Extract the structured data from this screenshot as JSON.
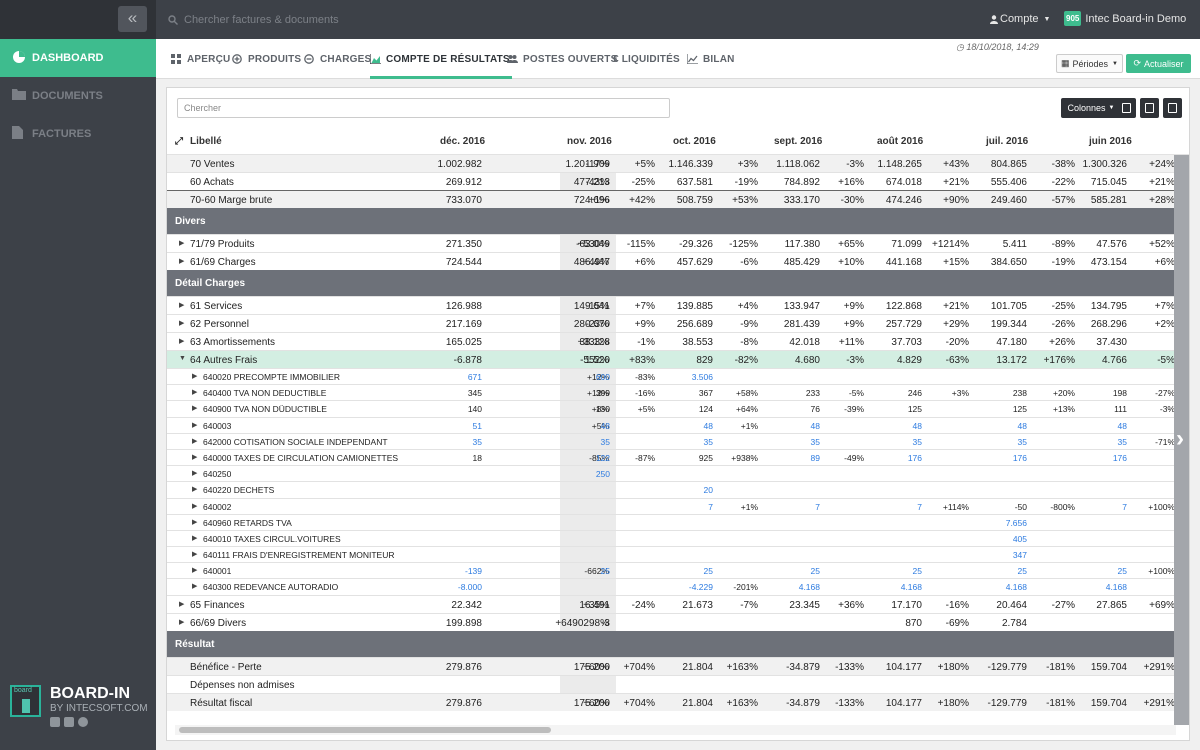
{
  "app": {
    "title": "Board-in",
    "account_label": "Compte",
    "org_badge": "905",
    "org_name": "Intec Board-in Demo",
    "search_placeholder": "Chercher factures & documents",
    "brand_name": "BOARD-IN",
    "brand_sub": "BY INTECSOFT.COM",
    "brand_logo_text": "board"
  },
  "sidebar": {
    "items": [
      {
        "label": "DASHBOARD",
        "icon": "pie-chart-icon"
      },
      {
        "label": "DOCUMENTS",
        "icon": "folder-icon"
      },
      {
        "label": "FACTURES",
        "icon": "file-icon"
      }
    ]
  },
  "nav": {
    "tabs": [
      {
        "label": "APERÇU",
        "icon": "grid-icon"
      },
      {
        "label": "PRODUITS",
        "icon": "plus-circle-icon"
      },
      {
        "label": "CHARGES",
        "icon": "minus-circle-icon"
      },
      {
        "label": "COMPTE DE RÉSULTATS",
        "icon": "area-chart-icon"
      },
      {
        "label": "POSTES OUVERTS",
        "icon": "users-icon"
      },
      {
        "label": "€ LIQUIDITÉS",
        "icon": "euro-icon"
      },
      {
        "label": "BILAN",
        "icon": "line-chart-icon"
      }
    ],
    "timestamp": "18/10/2018, 14:29",
    "periodes_label": "Périodes",
    "actualiser_label": "Actualiser"
  },
  "table": {
    "search_placeholder": "Chercher",
    "columns_label": "Colonnes",
    "headers": {
      "libelle": "Libellé",
      "months": [
        "déc. 2016",
        "nov. 2016",
        "oct. 2016",
        "sept. 2016",
        "août 2016",
        "juil. 2016",
        "juin 2016"
      ]
    },
    "rows": [
      {
        "t": "l1",
        "bg": "grey",
        "label": "70 Ventes",
        "c": [
          [
            "1.002.982",
            "-17%"
          ],
          [
            "1.201.909",
            "+5%"
          ],
          [
            "1.146.339",
            "+3%"
          ],
          [
            "1.118.062",
            "-3%"
          ],
          [
            "1.148.265",
            "+43%"
          ],
          [
            "804.865",
            "-38%"
          ],
          [
            "1.300.326",
            "+24%"
          ]
        ]
      },
      {
        "t": "l1",
        "label": "60 Achats",
        "c": [
          [
            "269.912",
            "-43%"
          ],
          [
            "477.213",
            "-25%"
          ],
          [
            "637.581",
            "-19%"
          ],
          [
            "784.892",
            "+16%"
          ],
          [
            "674.018",
            "+21%"
          ],
          [
            "555.406",
            "-22%"
          ],
          [
            "715.045",
            "+21%"
          ]
        ]
      },
      {
        "t": "l1",
        "bg": "grey",
        "sep": true,
        "label": "70-60 Marge brute",
        "c": [
          [
            "733.070",
            "+1%"
          ],
          [
            "724.696",
            "+42%"
          ],
          [
            "508.759",
            "+53%"
          ],
          [
            "333.170",
            "-30%"
          ],
          [
            "474.246",
            "+90%"
          ],
          [
            "249.460",
            "-57%"
          ],
          [
            "585.281",
            "+28%"
          ]
        ]
      },
      {
        "t": "sec",
        "label": "Divers"
      },
      {
        "t": "l1",
        "caret": "right",
        "label": "71/79 Produits",
        "c": [
          [
            "271.350",
            "+530%"
          ],
          [
            "-63.049",
            "-115%"
          ],
          [
            "-29.326",
            "-125%"
          ],
          [
            "117.380",
            "+65%"
          ],
          [
            "71.099",
            "+1214%"
          ],
          [
            "5.411",
            "-89%"
          ],
          [
            "47.576",
            "+52%"
          ]
        ]
      },
      {
        "t": "l1",
        "caret": "right",
        "label": "61/69 Charges",
        "c": [
          [
            "724.544",
            "+49%"
          ],
          [
            "486.447",
            "+6%"
          ],
          [
            "457.629",
            "-6%"
          ],
          [
            "485.429",
            "+10%"
          ],
          [
            "441.168",
            "+15%"
          ],
          [
            "384.650",
            "-19%"
          ],
          [
            "473.154",
            "+6%"
          ]
        ]
      },
      {
        "t": "sec",
        "label": "Détail Charges"
      },
      {
        "t": "l1",
        "caret": "right",
        "label": "61 Services",
        "c": [
          [
            "126.988",
            "-15%"
          ],
          [
            "149.641",
            "+7%"
          ],
          [
            "139.885",
            "+4%"
          ],
          [
            "133.947",
            "+9%"
          ],
          [
            "122.868",
            "+21%"
          ],
          [
            "101.705",
            "-25%"
          ],
          [
            "134.795",
            "+7%"
          ]
        ]
      },
      {
        "t": "l1",
        "caret": "right",
        "label": "62 Personnel",
        "c": [
          [
            "217.169",
            "-23%"
          ],
          [
            "280.670",
            "+9%"
          ],
          [
            "256.689",
            "-9%"
          ],
          [
            "281.439",
            "+9%"
          ],
          [
            "257.729",
            "+29%"
          ],
          [
            "199.344",
            "-26%"
          ],
          [
            "268.296",
            "+2%"
          ]
        ]
      },
      {
        "t": "l1",
        "caret": "right",
        "label": "63 Amortissements",
        "c": [
          [
            "165.025",
            "+333%"
          ],
          [
            "38.128",
            "-1%"
          ],
          [
            "38.553",
            "-8%"
          ],
          [
            "42.018",
            "+11%"
          ],
          [
            "37.703",
            "-20%"
          ],
          [
            "47.180",
            "+26%"
          ],
          [
            "37.430",
            ""
          ]
        ]
      },
      {
        "t": "l1",
        "bg": "hl",
        "caret": "down",
        "label": "64 Autres Frais",
        "c": [
          [
            "-6.878",
            "-552%"
          ],
          [
            "1.520",
            "+83%"
          ],
          [
            "829",
            "-82%"
          ],
          [
            "4.680",
            "-3%"
          ],
          [
            "4.829",
            "-63%"
          ],
          [
            "13.172",
            "+176%"
          ],
          [
            "4.766",
            "-5%"
          ]
        ]
      },
      {
        "t": "l2",
        "label": "640020 PRECOMPTE IMMOBILIER",
        "c": [
          [
            "671",
            "+12%",
            "link"
          ],
          [
            "600",
            "-83%",
            "link"
          ],
          [
            "3.506",
            "",
            "link"
          ],
          [
            "",
            ""
          ],
          [
            "",
            ""
          ],
          [
            "",
            ""
          ],
          [
            "",
            ""
          ]
        ]
      },
      {
        "t": "l2",
        "label": "640400 TVA NON DEDUCTIBLE",
        "c": [
          [
            "345",
            "+12%"
          ],
          [
            "309",
            "-16%"
          ],
          [
            "367",
            "+58%"
          ],
          [
            "233",
            "-5%"
          ],
          [
            "246",
            "+3%"
          ],
          [
            "238",
            "+20%"
          ],
          [
            "198",
            "-27%"
          ]
        ]
      },
      {
        "t": "l2",
        "label": "640900 TVA NON DÜDUCTIBLE",
        "c": [
          [
            "140",
            "+8%"
          ],
          [
            "130",
            "+5%"
          ],
          [
            "124",
            "+64%"
          ],
          [
            "76",
            "-39%"
          ],
          [
            "125",
            ""
          ],
          [
            "125",
            "+13%"
          ],
          [
            "111",
            "-3%"
          ]
        ]
      },
      {
        "t": "l2",
        "label": "640003",
        "c": [
          [
            "51",
            "+5%",
            "link"
          ],
          [
            "48",
            "",
            "link"
          ],
          [
            "48",
            "+1%",
            "link"
          ],
          [
            "48",
            "",
            "link"
          ],
          [
            "48",
            "",
            "link"
          ],
          [
            "48",
            "",
            "link"
          ],
          [
            "48",
            "",
            "link"
          ]
        ]
      },
      {
        "t": "l2",
        "label": "642000 COTISATION SOCIALE INDEPENDANT",
        "c": [
          [
            "35",
            "",
            "link"
          ],
          [
            "35",
            "",
            "link"
          ],
          [
            "35",
            "",
            "link"
          ],
          [
            "35",
            "",
            "link"
          ],
          [
            "35",
            "",
            "link"
          ],
          [
            "35",
            "",
            "link"
          ],
          [
            "35",
            "-71%",
            "link"
          ]
        ]
      },
      {
        "t": "l2",
        "label": "640000 TAXES DE CIRCULATION CAMIONETTES",
        "c": [
          [
            "18",
            "-85%"
          ],
          [
            "122",
            "-87%",
            "link"
          ],
          [
            "925",
            "+938%"
          ],
          [
            "89",
            "-49%",
            "link"
          ],
          [
            "176",
            "",
            "link"
          ],
          [
            "176",
            "",
            "link"
          ],
          [
            "176",
            "",
            "link"
          ]
        ]
      },
      {
        "t": "l2",
        "label": "640250",
        "c": [
          [
            "",
            ""
          ],
          [
            "250",
            "",
            "link"
          ],
          [
            "",
            ""
          ],
          [
            "",
            ""
          ],
          [
            "",
            ""
          ],
          [
            "",
            ""
          ],
          [
            "",
            ""
          ]
        ]
      },
      {
        "t": "l2",
        "label": "640220 DECHETS",
        "c": [
          [
            "",
            ""
          ],
          [
            "",
            ""
          ],
          [
            "20",
            "",
            "link"
          ],
          [
            "",
            ""
          ],
          [
            "",
            ""
          ],
          [
            "",
            ""
          ],
          [
            "",
            ""
          ]
        ]
      },
      {
        "t": "l2",
        "label": "640002",
        "c": [
          [
            "",
            ""
          ],
          [
            "",
            ""
          ],
          [
            "7",
            "+1%",
            "link"
          ],
          [
            "7",
            "",
            "link"
          ],
          [
            "7",
            "+114%",
            "link"
          ],
          [
            "-50",
            "-800%"
          ],
          [
            "7",
            "+100%",
            "link"
          ]
        ]
      },
      {
        "t": "l2",
        "label": "640960 RETARDS TVA",
        "c": [
          [
            "",
            ""
          ],
          [
            "",
            ""
          ],
          [
            "",
            ""
          ],
          [
            "",
            ""
          ],
          [
            "",
            ""
          ],
          [
            "7.656",
            "",
            "link"
          ],
          [
            "",
            ""
          ]
        ]
      },
      {
        "t": "l2",
        "label": "640010 TAXES CIRCUL.VOITURES",
        "c": [
          [
            "",
            ""
          ],
          [
            "",
            ""
          ],
          [
            "",
            ""
          ],
          [
            "",
            ""
          ],
          [
            "",
            ""
          ],
          [
            "405",
            "",
            "link"
          ],
          [
            "",
            ""
          ]
        ]
      },
      {
        "t": "l2",
        "label": "640111 FRAIS D'ENREGISTREMENT MONITEUR",
        "c": [
          [
            "",
            ""
          ],
          [
            "",
            ""
          ],
          [
            "",
            ""
          ],
          [
            "",
            ""
          ],
          [
            "",
            ""
          ],
          [
            "347",
            "",
            "link"
          ],
          [
            "",
            ""
          ]
        ]
      },
      {
        "t": "l2",
        "label": "640001",
        "c": [
          [
            "-139",
            "-662%",
            "link"
          ],
          [
            "25",
            "",
            "link"
          ],
          [
            "25",
            "",
            "link"
          ],
          [
            "25",
            "",
            "link"
          ],
          [
            "25",
            "",
            "link"
          ],
          [
            "25",
            "",
            "link"
          ],
          [
            "25",
            "+100%",
            "link"
          ]
        ]
      },
      {
        "t": "l2",
        "label": "640300 REDEVANCE AUTORADIO",
        "c": [
          [
            "-8.000",
            "",
            "link"
          ],
          [
            "",
            ""
          ],
          [
            "-4.229",
            "-201%",
            "link"
          ],
          [
            "4.168",
            "",
            "link"
          ],
          [
            "4.168",
            "",
            "link"
          ],
          [
            "4.168",
            "",
            "link"
          ],
          [
            "4.168",
            "",
            "link"
          ]
        ]
      },
      {
        "t": "l1",
        "caret": "right",
        "label": "65 Finances",
        "c": [
          [
            "22.342",
            "+35%"
          ],
          [
            "16.491",
            "-24%"
          ],
          [
            "21.673",
            "-7%"
          ],
          [
            "23.345",
            "+36%"
          ],
          [
            "17.170",
            "-16%"
          ],
          [
            "20.464",
            "-27%"
          ],
          [
            "27.865",
            "+69%"
          ]
        ]
      },
      {
        "t": "l1",
        "caret": "right",
        "label": "66/69 Divers",
        "c": [
          [
            "199.898",
            "+6490298%"
          ],
          [
            "-3",
            ""
          ],
          [
            "",
            ""
          ],
          [
            "",
            ""
          ],
          [
            "870",
            "-69%"
          ],
          [
            "2.784",
            ""
          ],
          [
            "",
            ""
          ]
        ]
      },
      {
        "t": "sec",
        "label": "Résultat"
      },
      {
        "t": "l1",
        "bg": "grey",
        "label": "Bénéfice - Perte",
        "c": [
          [
            "279.876",
            "+60%"
          ],
          [
            "175.200",
            "+704%"
          ],
          [
            "21.804",
            "+163%"
          ],
          [
            "-34.879",
            "-133%"
          ],
          [
            "104.177",
            "+180%"
          ],
          [
            "-129.779",
            "-181%"
          ],
          [
            "159.704",
            "+291%"
          ]
        ]
      },
      {
        "t": "l1",
        "label": "Dépenses non admises",
        "c": [
          [
            "",
            ""
          ],
          [
            "",
            ""
          ],
          [
            "",
            ""
          ],
          [
            "",
            ""
          ],
          [
            "",
            ""
          ],
          [
            "",
            ""
          ],
          [
            "",
            ""
          ]
        ]
      },
      {
        "t": "l1",
        "bg": "grey",
        "label": "Résultat fiscal",
        "c": [
          [
            "279.876",
            "+60%"
          ],
          [
            "175.200",
            "+704%"
          ],
          [
            "21.804",
            "+163%"
          ],
          [
            "-34.879",
            "-133%"
          ],
          [
            "104.177",
            "+180%"
          ],
          [
            "-129.779",
            "-181%"
          ],
          [
            "159.704",
            "+291%"
          ]
        ]
      }
    ]
  },
  "colors": {
    "accent": "#3ebc8e",
    "sidebar": "#3d4148",
    "section": "#6d7179",
    "link": "#2d7be0",
    "highlight": "#d3eee2"
  }
}
